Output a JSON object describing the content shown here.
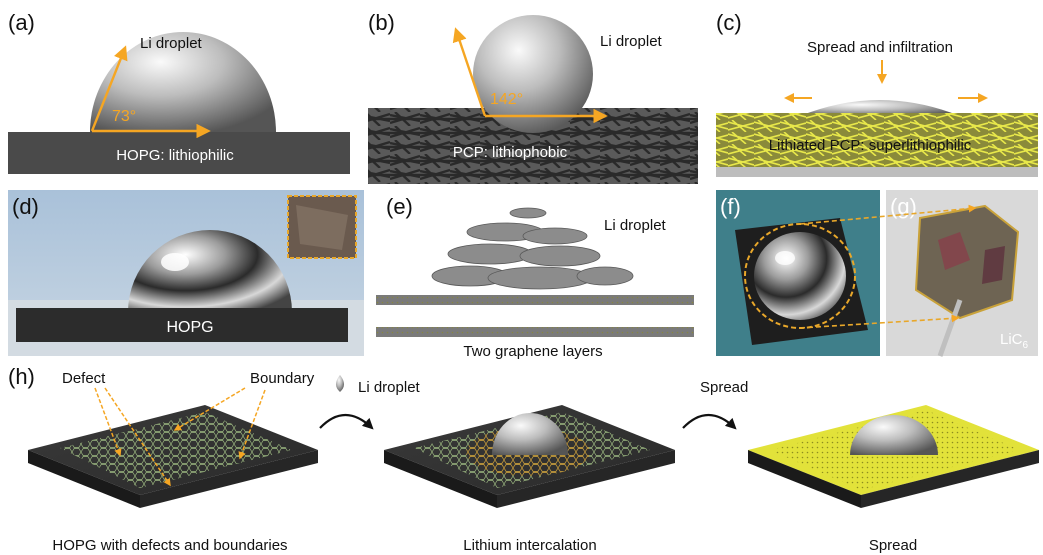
{
  "panels": {
    "a": {
      "label": "(a)",
      "droplet": "Li droplet",
      "angle": "73°",
      "substrate": "HOPG: lithiophilic"
    },
    "b": {
      "label": "(b)",
      "droplet": "Li droplet",
      "angle": "142°",
      "substrate": "PCP: lithiophobic"
    },
    "c": {
      "label": "(c)",
      "title": "Spread and infiltration",
      "substrate": "Lithiated PCP: superlithiophilic"
    },
    "d": {
      "label": "(d)",
      "substrate": "HOPG"
    },
    "e": {
      "label": "(e)",
      "droplet": "Li droplet",
      "layers": "Two graphene layers"
    },
    "f": {
      "label": "(f)"
    },
    "g": {
      "label": "(g)",
      "product": "LiC",
      "product_sub": "6"
    },
    "h": {
      "label": "(h)",
      "defect": "Defect",
      "boundary": "Boundary",
      "step1_action": "Li droplet",
      "step2_action": "Spread",
      "captions": [
        "HOPG with defects and boundaries",
        "Lithium intercalation",
        "Spread"
      ]
    }
  },
  "colors": {
    "arrow": "#f5a623",
    "substrate": "#4a4a4a",
    "yellow": "#e2e23a",
    "lattice": "#a9c98a"
  }
}
